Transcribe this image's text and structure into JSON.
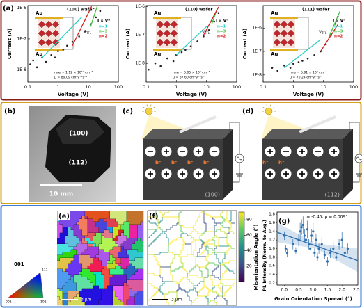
{
  "panel_labels": [
    "(a)",
    "(b)",
    "(c)",
    "(d)",
    "(e)",
    "(f)",
    "(g)"
  ],
  "chart_data": [
    {
      "type": "scatter",
      "title": "(100) wafer",
      "x_label": "Voltage (V)",
      "y_label": "Current (A)",
      "log_x": true,
      "log_y": true,
      "color": "#222222",
      "x": [
        0.12,
        0.15,
        0.2,
        0.3,
        0.4,
        0.6,
        0.8,
        1,
        1.5,
        2,
        3,
        5,
        8,
        12,
        18,
        25
      ],
      "values": [
        1.5e-08,
        2e-08,
        1.2e-08,
        2.5e-08,
        1.8e-08,
        3e-08,
        2.5e-08,
        4e-08,
        4.5e-08,
        6e-08,
        8e-08,
        1.2e-07,
        1.8e-07,
        3e-07,
        5e-07,
        8e-07
      ],
      "xlim": [
        0.1,
        100
      ],
      "xticks": [
        0.1,
        1,
        10,
        100
      ],
      "ylim": [
        4e-09,
        1.2e-06
      ],
      "yticks": [
        {
          "value": 1e-06,
          "label": "1E-6"
        },
        {
          "value": 1e-07,
          "label": "1E-7"
        },
        {
          "value": 1e-08,
          "label": "1E-8"
        }
      ],
      "legend_title": "I ∝ Vⁿ",
      "fits": [
        {
          "name": "n=1",
          "color": "#27cfc6",
          "x": [
            0.3,
            6
          ],
          "values": [
            2.5e-08,
            5e-07
          ]
        },
        {
          "name": "n=3",
          "color": "#3cc13c",
          "x": [
            12,
            20
          ],
          "values": [
            2.5e-07,
            1.16e-06
          ]
        },
        {
          "name": "n=2",
          "color": "#d01c1c",
          "x": [
            3,
            13
          ],
          "values": [
            6e-08,
            1.13e-06
          ]
        }
      ],
      "electrodes": [
        "Au",
        "Au"
      ],
      "threshold": {
        "symbol": "V",
        "subscript": "TFL"
      },
      "notes": [
        "nₜᵣₐₚ ~ 1.12 × 10¹⁰ cm⁻³",
        "μ = 89.09 cm²V⁻¹s⁻¹"
      ]
    },
    {
      "type": "scatter",
      "title": "(110) wafer",
      "x_label": "Voltage (V)",
      "y_label": "Current (A)",
      "log_x": true,
      "log_y": true,
      "color": "#222222",
      "x": [
        0.12,
        0.2,
        0.3,
        0.5,
        0.8,
        1,
        1.5,
        2,
        3,
        5,
        8,
        12,
        18,
        25
      ],
      "values": [
        6e-09,
        1e-08,
        8e-09,
        1.5e-08,
        1.2e-08,
        2e-08,
        2.5e-08,
        3e-08,
        4e-08,
        6e-08,
        9e-08,
        1.5e-07,
        3e-07,
        6e-07
      ],
      "xlim": [
        0.1,
        100
      ],
      "xticks": [
        0.1,
        1,
        10,
        100
      ],
      "ylim": [
        2.2e-09,
        1.1e-06
      ],
      "yticks": [
        {
          "value": 1e-06,
          "label": "1E-6"
        },
        {
          "value": 1e-07,
          "label": "1E-7"
        },
        {
          "value": 1e-08,
          "label": "1E-8"
        }
      ],
      "legend_title": "I ∝ Vⁿ",
      "fits": [
        {
          "name": "n=1",
          "color": "#27cfc6",
          "x": [
            1,
            10
          ],
          "values": [
            2e-08,
            2e-07
          ]
        },
        {
          "name": "n=3",
          "color": "#3cc13c",
          "x": [
            15,
            22
          ],
          "values": [
            2.5e-07,
            7.9e-07
          ]
        },
        {
          "name": "n=2",
          "color": "#d01c1c",
          "x": [
            8,
            25
          ],
          "values": [
            1e-07,
            9.8e-07
          ]
        }
      ],
      "electrodes": [
        "Au",
        "Au"
      ],
      "threshold": {
        "symbol": "V",
        "subscript": "TFL"
      },
      "notes": [
        "nₜᵣₐₚ ~ 6.05 × 10⁹ cm⁻³",
        "μ = 87.60 cm²V⁻¹s⁻¹"
      ]
    },
    {
      "type": "scatter",
      "title": "(111) wafer",
      "x_label": "Voltage (V)",
      "y_label": "Current (A)",
      "log_x": true,
      "log_y": true,
      "color": "#222222",
      "x": [
        0.2,
        0.3,
        0.5,
        0.8,
        1,
        1.5,
        2,
        3,
        5,
        8,
        12,
        18,
        25,
        30
      ],
      "values": [
        2e-08,
        1.5e-08,
        2.5e-08,
        2e-08,
        3e-08,
        3.5e-08,
        4e-08,
        5e-08,
        7e-08,
        1e-07,
        2e-07,
        5e-07,
        1.5e-06,
        3e-06
      ],
      "xlim": [
        0.1,
        100
      ],
      "xticks": [
        0.1,
        1,
        10,
        100
      ],
      "ylim": [
        5e-09,
        9e-06
      ],
      "yticks": [
        {
          "value": 1e-06,
          "label": "1E-6"
        },
        {
          "value": 1e-07,
          "label": "1E-7"
        },
        {
          "value": 1e-08,
          "label": "1E-8"
        }
      ],
      "legend_title": "I ∝ Vⁿ",
      "fits": [
        {
          "name": "n=1",
          "color": "#27cfc6",
          "x": [
            0.5,
            8
          ],
          "values": [
            2e-08,
            3.2e-07
          ]
        },
        {
          "name": "n=3",
          "color": "#3cc13c",
          "x": [
            15,
            35
          ],
          "values": [
            4e-07,
            5.1e-06
          ]
        },
        {
          "name": "n=2",
          "color": "#d01c1c",
          "x": [
            8,
            30
          ],
          "values": [
            1e-07,
            1.4e-06
          ]
        }
      ],
      "electrodes": [
        "Au",
        "Au"
      ],
      "threshold": {
        "symbol": "V",
        "subscript": "TFL"
      },
      "notes": [
        "nₜᵣₐₚ ~ 5.91 × 10⁹ cm⁻³",
        "μ = 70.24 cm²V⁻¹s⁻¹"
      ]
    },
    {
      "type": "scatter",
      "x_label": "Grain Orientation Spread (°)",
      "y_label": "PL Intensity (Norm. to Avg.)",
      "annotation": "r = -0.45, p = 0.0091",
      "color": "#2e6fb0",
      "x": [
        0.0,
        0.05,
        0.1,
        0.3,
        0.4,
        0.5,
        0.55,
        0.6,
        0.65,
        0.7,
        0.75,
        0.8,
        0.85,
        0.9,
        0.95,
        1.0,
        1.05,
        1.1,
        1.15,
        1.2,
        1.3,
        1.4,
        1.5,
        1.6,
        1.7,
        1.8,
        1.9,
        2.0,
        2.1,
        2.2
      ],
      "values": [
        1.3,
        1.0,
        0.9,
        1.1,
        0.95,
        1.2,
        1.4,
        1.5,
        1.55,
        1.3,
        1.2,
        1.45,
        1.1,
        1.0,
        1.3,
        1.4,
        0.9,
        1.2,
        0.8,
        1.0,
        1.1,
        0.85,
        0.7,
        0.9,
        1.0,
        0.8,
        1.1,
        1.2,
        0.9,
        1.0
      ],
      "errors": [
        0.1,
        0.08,
        0.1,
        0.12,
        0.08,
        0.15,
        0.2,
        0.18,
        0.2,
        0.15,
        0.1,
        0.2,
        0.12,
        0.1,
        0.15,
        0.2,
        0.1,
        0.15,
        0.1,
        0.12,
        0.15,
        0.1,
        0.1,
        0.12,
        0.15,
        0.1,
        0.12,
        0.18,
        0.1,
        0.12
      ],
      "fit": {
        "x": [
          -0.25,
          2.55
        ],
        "values": [
          1.38,
          0.72
        ]
      },
      "band": {
        "x": [
          -0.25,
          1.1,
          2.55
        ],
        "upper": [
          1.6,
          1.12,
          1.0
        ],
        "lower": [
          1.15,
          1.0,
          0.45
        ]
      },
      "xlim": [
        -0.25,
        2.55
      ],
      "xticks": [
        {
          "value": 0,
          "label": "0.0"
        },
        0.5,
        {
          "value": 1,
          "label": "1.0"
        },
        1.5,
        {
          "value": 2,
          "label": "2.0"
        },
        2.5
      ],
      "ylim": [
        0.15,
        1.85
      ],
      "yticks": [
        0.2,
        0.4,
        0.6,
        0.8,
        {
          "value": 1,
          "label": "1.0"
        },
        1.2,
        1.4,
        1.6,
        1.8
      ]
    }
  ],
  "photo": {
    "top_face": "(100)",
    "side_face": "(112)",
    "scale_bar": "10 mm"
  },
  "device_c": {
    "carriers": [
      "h⁺",
      "h⁺",
      "h⁺",
      "h⁺"
    ],
    "facet": "(100)"
  },
  "device_d": {
    "carriers": [
      "h⁺",
      "h⁺"
    ],
    "facet": "(112)"
  },
  "ebsd": {
    "scale_bar": "3 μm",
    "ipf_title": "001",
    "ipf_corners": [
      "001",
      "101",
      "111"
    ]
  },
  "boundary_map": {
    "scale_bar": "3 μm",
    "colorbar": {
      "label": "Misorientation Angle (°)",
      "lim": [
        0,
        90
      ],
      "ticks": [
        20,
        40,
        60,
        80
      ]
    }
  }
}
